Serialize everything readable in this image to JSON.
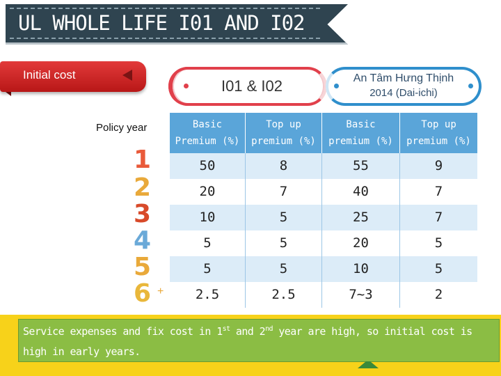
{
  "title": "UL WHOLE LIFE  I01 AND I02",
  "ribbon": {
    "label": "Initial cost"
  },
  "pills": {
    "left": {
      "label": "I01 & I02"
    },
    "right": {
      "line1": "An Tâm Hưng Thịnh",
      "line2": "2014 (Dai-ichi)"
    }
  },
  "policy_year": {
    "label": "Policy year",
    "years": [
      "1",
      "2",
      "3",
      "4",
      "5",
      "6"
    ],
    "plus": "+"
  },
  "table": {
    "headers": [
      {
        "line1": "Basic",
        "line2": "Premium (%)"
      },
      {
        "line1": "Top up",
        "line2": "premium (%)"
      },
      {
        "line1": "Basic",
        "line2": "premium (%)"
      },
      {
        "line1": "Top up",
        "line2": "premium (%)"
      }
    ],
    "rows": [
      [
        "50",
        "8",
        "55",
        "9"
      ],
      [
        "20",
        "7",
        "40",
        "7"
      ],
      [
        "10",
        "5",
        "25",
        "7"
      ],
      [
        "5",
        "5",
        "20",
        "5"
      ],
      [
        "5",
        "5",
        "10",
        "5"
      ],
      [
        "2.5",
        "2.5",
        "7~3",
        "2"
      ]
    ]
  },
  "note": {
    "part1": "Service expenses and fix cost  in 1",
    "sup1": "st",
    "part2": " and 2",
    "sup2": "nd",
    "part3": " year are high, so initial cost is high in early years."
  },
  "colors": {
    "banner": "#2f4450",
    "ribbon": "#c81f1f",
    "table_header": "#5aa5d9",
    "note_bg": "#8bbd44",
    "bottom_band": "#f7d21a"
  }
}
